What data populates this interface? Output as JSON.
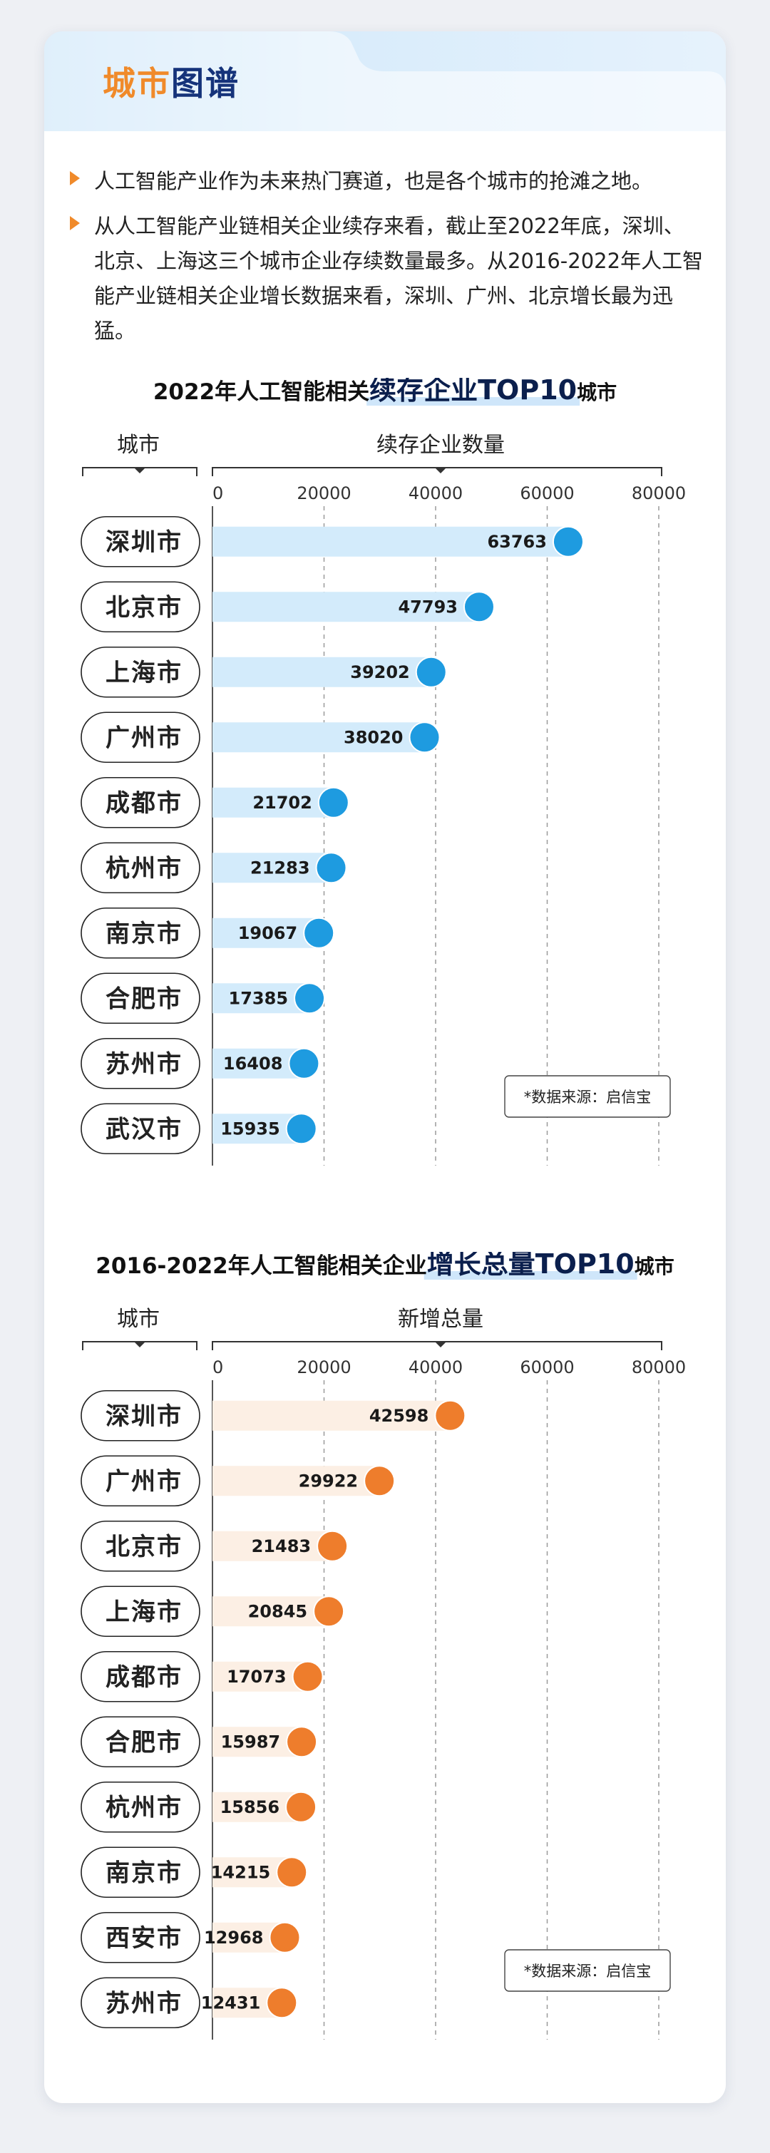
{
  "header": {
    "title_part1": "城市",
    "title_part2": "图谱"
  },
  "intro": {
    "bullets": [
      "人工智能产业作为未来热门赛道，也是各个城市的抢滩之地。",
      "从人工智能产业链相关企业续存来看，截止至2022年底，深圳、北京、上海这三个城市企业存续数量最多。从2016-2022年人工智能产业链相关企业增长数据来看，深圳、广州、北京增长最为迅猛。"
    ]
  },
  "colors": {
    "chart1_dot": "#1e9be0",
    "chart1_bar": "#d3ebfb",
    "chart2_dot": "#ee7d2c",
    "chart2_bar": "#fcefe4",
    "highlight_underline": "#cfe6fa"
  },
  "chart_data": [
    {
      "type": "bar",
      "title_prefix": "2022年人工智能相关",
      "title_highlight": "续存企业TOP10",
      "title_suffix": "城市",
      "category_header": "城市",
      "value_header": "续存企业数量",
      "xlim": [
        0,
        80000
      ],
      "ticks": [
        0,
        20000,
        40000,
        60000,
        80000
      ],
      "grid": "dashed vertical",
      "categories": [
        "深圳市",
        "北京市",
        "上海市",
        "广州市",
        "成都市",
        "杭州市",
        "南京市",
        "合肥市",
        "苏州市",
        "武汉市"
      ],
      "values": [
        63763,
        47793,
        39202,
        38020,
        21702,
        21283,
        19067,
        17385,
        16408,
        15935
      ],
      "source_note": "*数据来源：启信宝"
    },
    {
      "type": "bar",
      "title_prefix": "2016-2022年人工智能相关企业",
      "title_highlight": "增长总量TOP10",
      "title_suffix": "城市",
      "category_header": "城市",
      "value_header": "新增总量",
      "xlim": [
        0,
        80000
      ],
      "ticks": [
        0,
        20000,
        40000,
        60000,
        80000
      ],
      "grid": "dashed vertical",
      "categories": [
        "深圳市",
        "广州市",
        "北京市",
        "上海市",
        "成都市",
        "合肥市",
        "杭州市",
        "南京市",
        "西安市",
        "苏州市"
      ],
      "values": [
        42598,
        29922,
        21483,
        20845,
        17073,
        15987,
        15856,
        14215,
        12968,
        12431
      ],
      "source_note": "*数据来源：启信宝"
    }
  ]
}
